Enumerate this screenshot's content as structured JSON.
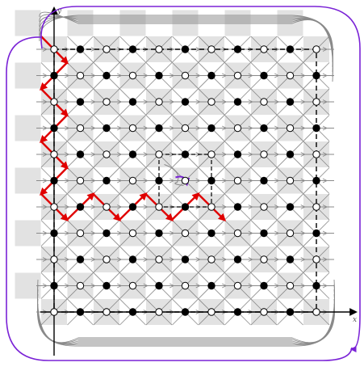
{
  "axes": {
    "x_label": "x",
    "y_label": "y"
  },
  "grid": {
    "columns": 11,
    "rows": 11,
    "inner_frame": {
      "col_from": 4,
      "col_to": 6,
      "row_from": 4,
      "row_to": 6
    }
  },
  "colors": {
    "background": "#ffffff",
    "shade": "#e2e2e2",
    "grid_lines": "#8a8a8a",
    "dots": "#000000",
    "highlight_path": "#e00000",
    "outer_loop": "#7a22d6",
    "frame": "#000000"
  },
  "red_path": {
    "vertical_column": 0,
    "vertical_rows": [
      0,
      6
    ],
    "horizontal_row": 6,
    "horizontal_cols": [
      0,
      6
    ]
  },
  "small_loop": {
    "col": 5,
    "row": 5
  }
}
